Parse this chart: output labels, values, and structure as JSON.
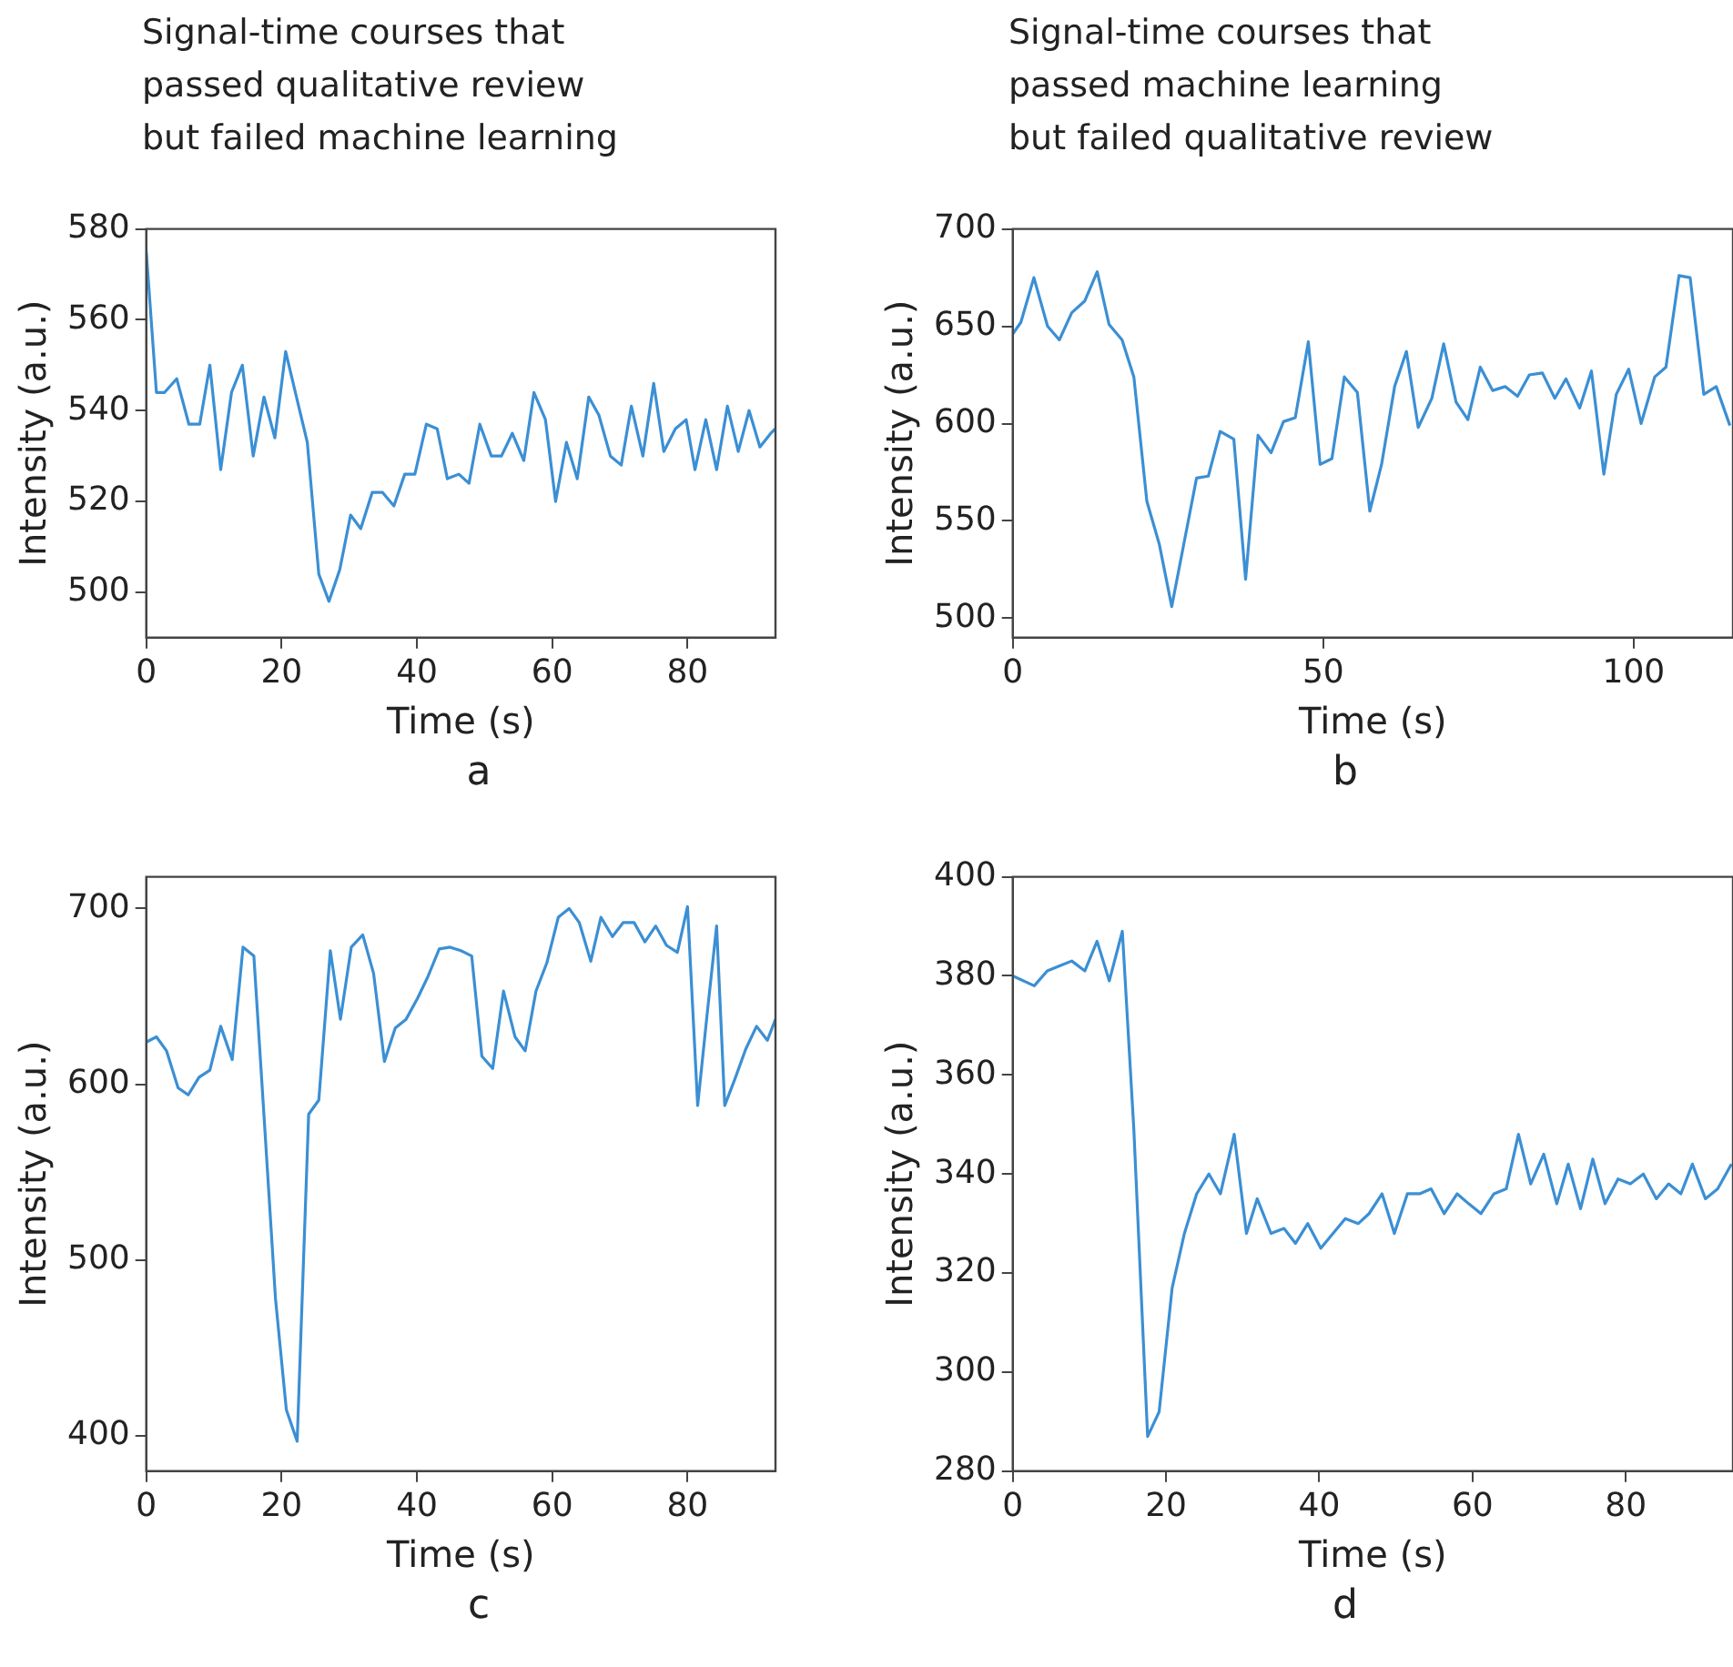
{
  "chart_data": [
    {
      "type": "line",
      "title": "Signal-time courses that\npassed qualitative review\nbut failed machine learning",
      "xlabel": "Time (s)",
      "ylabel": "Intensity (a.u.)",
      "annotations": [
        "a"
      ],
      "marker": "none",
      "line_style": "solid",
      "xlim": [
        0,
        93
      ],
      "xticks": [
        0,
        20,
        40,
        60,
        80
      ],
      "ylim": [
        490,
        580
      ],
      "yticks": [
        500,
        520,
        540,
        560,
        580
      ],
      "series": [
        {
          "color": "#3b8fd4",
          "x": [
            0,
            1.5,
            2.7,
            4.5,
            6.3,
            7.9,
            9.4,
            11,
            12.6,
            14.2,
            15.8,
            17.4,
            19,
            20.6,
            22.2,
            23.8,
            25.5,
            27,
            28.6,
            30.2,
            31.7,
            33.4,
            34.9,
            36.6,
            38.2,
            39.7,
            41.4,
            43,
            44.5,
            46.2,
            47.7,
            49.3,
            51,
            52.5,
            54.1,
            55.8,
            57.3,
            59,
            60.5,
            62.1,
            63.7,
            65.4,
            66.9,
            68.6,
            70.2,
            71.7,
            73.4,
            75,
            76.5,
            78.2,
            79.8,
            81.1,
            82.7,
            84.3,
            85.9,
            87.5,
            89.1,
            90.7,
            92.3,
            93
          ],
          "values": [
            575,
            544,
            544,
            547,
            537,
            537,
            550,
            527,
            544,
            550,
            530,
            543,
            534,
            553,
            543,
            533,
            504,
            498,
            505,
            517,
            514,
            522,
            522,
            519,
            526,
            526,
            537,
            536,
            525,
            526,
            524,
            537,
            530,
            530,
            535,
            529,
            544,
            538,
            520,
            533,
            525,
            543,
            539,
            530,
            528,
            541,
            530,
            546,
            531,
            536,
            538,
            527,
            538,
            527,
            541,
            531,
            540,
            532,
            535,
            536
          ]
        }
      ]
    },
    {
      "type": "line",
      "title": "Signal-time courses that\npassed machine learning\nbut failed qualitative review",
      "xlabel": "Time (s)",
      "ylabel": "Intensity (a.u.)",
      "annotations": [
        "b"
      ],
      "marker": "none",
      "line_style": "solid",
      "xlim": [
        0,
        116
      ],
      "xticks": [
        0,
        50,
        100
      ],
      "ylim": [
        490,
        700
      ],
      "yticks": [
        500,
        550,
        600,
        650,
        700
      ],
      "series": [
        {
          "color": "#3b8fd4",
          "x": [
            0,
            1.3,
            3.4,
            5.6,
            7.5,
            9.5,
            11.6,
            13.6,
            15.5,
            17.6,
            19.5,
            21.6,
            23.6,
            25.6,
            27.6,
            29.6,
            31.5,
            33.4,
            35.6,
            37.5,
            39.5,
            41.6,
            43.6,
            45.5,
            47.6,
            49.5,
            51.4,
            53.4,
            55.5,
            57.5,
            59.4,
            61.5,
            63.4,
            65.3,
            67.5,
            69.4,
            71.4,
            73.3,
            75.3,
            77.3,
            79.3,
            81.3,
            83.2,
            85.3,
            87.3,
            89.1,
            91.3,
            93.2,
            95.2,
            97.2,
            99.2,
            101.2,
            103.4,
            105.2,
            107.3,
            109.1,
            111.3,
            113.3,
            115.5
          ],
          "values": [
            646,
            652,
            675,
            650,
            643,
            657,
            663,
            678,
            651,
            643,
            624,
            560,
            538,
            506,
            539,
            572,
            573,
            596,
            592,
            520,
            594,
            585,
            601,
            603,
            642,
            579,
            582,
            624,
            616,
            555,
            579,
            619,
            637,
            598,
            613,
            641,
            611,
            602,
            629,
            617,
            619,
            614,
            625,
            626,
            613,
            623,
            608,
            627,
            574,
            615,
            628,
            600,
            624,
            629,
            676,
            675,
            615,
            619,
            599
          ]
        }
      ]
    },
    {
      "type": "line",
      "xlabel": "Time (s)",
      "ylabel": "Intensity (a.u.)",
      "annotations": [
        "c"
      ],
      "marker": "none",
      "line_style": "solid",
      "xlim": [
        0,
        93
      ],
      "xticks": [
        0,
        20,
        40,
        60,
        80
      ],
      "ylim": [
        380,
        718
      ],
      "yticks": [
        400,
        500,
        600,
        700
      ],
      "series": [
        {
          "color": "#3b8fd4",
          "x": [
            0,
            1.5,
            3,
            4.7,
            6.2,
            7.8,
            9.4,
            11,
            12.7,
            14.3,
            15.9,
            17.5,
            19.1,
            20.7,
            22.3,
            24,
            25.5,
            27.2,
            28.7,
            30.3,
            32,
            33.6,
            35.2,
            36.8,
            38.4,
            40.1,
            41.6,
            43.3,
            44.9,
            46.5,
            48.1,
            49.6,
            51.2,
            52.8,
            54.5,
            56,
            57.6,
            59.2,
            60.9,
            62.5,
            64,
            65.7,
            67.2,
            68.9,
            70.5,
            72.1,
            73.7,
            75.3,
            76.9,
            78.5,
            80,
            81.5,
            82.9,
            84.3,
            85.5,
            87,
            88.6,
            90.2,
            91.8,
            93
          ],
          "values": [
            624,
            627,
            619,
            598,
            594,
            604,
            608,
            633,
            614,
            678,
            673,
            576,
            478,
            415,
            397,
            583,
            591,
            676,
            637,
            678,
            685,
            663,
            613,
            632,
            637,
            649,
            661,
            677,
            678,
            676,
            673,
            616,
            609,
            653,
            627,
            619,
            653,
            669,
            695,
            700,
            692,
            670,
            695,
            684,
            692,
            692,
            681,
            690,
            679,
            675,
            701,
            588,
            640,
            690,
            588,
            603,
            620,
            633,
            625,
            637
          ]
        }
      ]
    },
    {
      "type": "line",
      "xlabel": "Time (s)",
      "ylabel": "Intensity (a.u.)",
      "annotations": [
        "d"
      ],
      "marker": "none",
      "line_style": "solid",
      "xlim": [
        0,
        94
      ],
      "xticks": [
        0,
        20,
        40,
        60,
        80
      ],
      "ylim": [
        280,
        400
      ],
      "yticks": [
        280,
        300,
        320,
        340,
        360,
        380,
        400
      ],
      "series": [
        {
          "color": "#3b8fd4",
          "x": [
            0,
            2.8,
            4.5,
            6.1,
            7.7,
            9.4,
            11,
            12.6,
            14.3,
            15.8,
            17.6,
            19.1,
            20.8,
            22.4,
            24,
            25.6,
            27.1,
            28.9,
            30.5,
            31.9,
            33.7,
            35.4,
            36.9,
            38.5,
            40.2,
            41.8,
            43.4,
            45.1,
            46.5,
            48.2,
            49.8,
            51.5,
            53.1,
            54.6,
            56.3,
            58,
            59.5,
            61.1,
            62.8,
            64.4,
            66,
            67.6,
            69.3,
            71,
            72.5,
            74.1,
            75.7,
            77.3,
            79,
            80.6,
            82.3,
            84,
            85.6,
            87.2,
            88.7,
            90.4,
            92,
            93.8
          ],
          "values": [
            380,
            378,
            381,
            382,
            383,
            381,
            387,
            379,
            389,
            349,
            287,
            292,
            317,
            328,
            336,
            340,
            336,
            348,
            328,
            335,
            328,
            329,
            326,
            330,
            325,
            328,
            331,
            330,
            332,
            336,
            328,
            336,
            336,
            337,
            332,
            336,
            334,
            332,
            336,
            337,
            348,
            338,
            344,
            334,
            342,
            333,
            343,
            334,
            339,
            338,
            340,
            335,
            338,
            336,
            342,
            335,
            337,
            342
          ]
        }
      ]
    }
  ]
}
